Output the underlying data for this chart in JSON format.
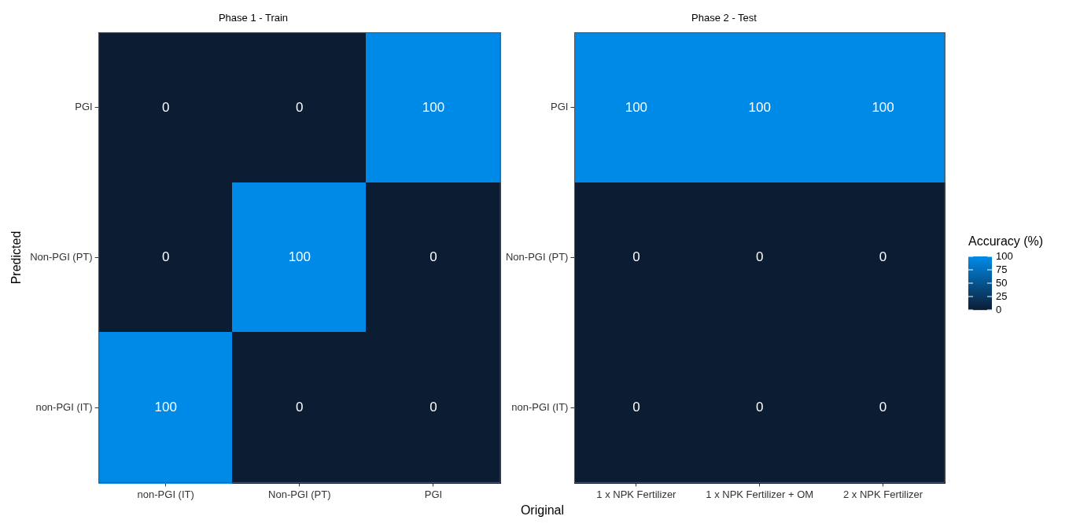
{
  "chart_data": [
    {
      "type": "heatmap",
      "title": "Phase 1 - Train",
      "xlabel": "Original",
      "ylabel": "Predicted",
      "categories": [
        "non-PGI (IT)",
        "Non-PGI (PT)",
        "PGI"
      ],
      "y_categories": [
        "PGI",
        "Non-PGI (PT)",
        "non-PGI (IT)"
      ],
      "cells": [
        [
          0,
          0,
          100
        ],
        [
          0,
          100,
          0
        ],
        [
          100,
          0,
          0
        ]
      ],
      "colors": [
        "#0c1c33",
        "#008ae8"
      ],
      "data_labels": true
    },
    {
      "type": "heatmap",
      "title": "Phase 2 - Test",
      "categories": [
        "1 x NPK Fertilizer",
        "1 x NPK Fertilizer + OM",
        "2 x NPK Fertilizer"
      ],
      "y_categories": [
        "PGI",
        "Non-PGI (PT)",
        "non-PGI (IT)"
      ],
      "cells": [
        [
          100,
          100,
          100
        ],
        [
          0,
          0,
          0
        ],
        [
          0,
          0,
          0
        ]
      ],
      "clim": [
        0,
        100
      ],
      "cticks": [
        0,
        25,
        50,
        75,
        100
      ],
      "clabel": "Accuracy (%)",
      "colors": [
        "#0c1c33",
        "#008ae8"
      ],
      "data_labels": true
    }
  ]
}
